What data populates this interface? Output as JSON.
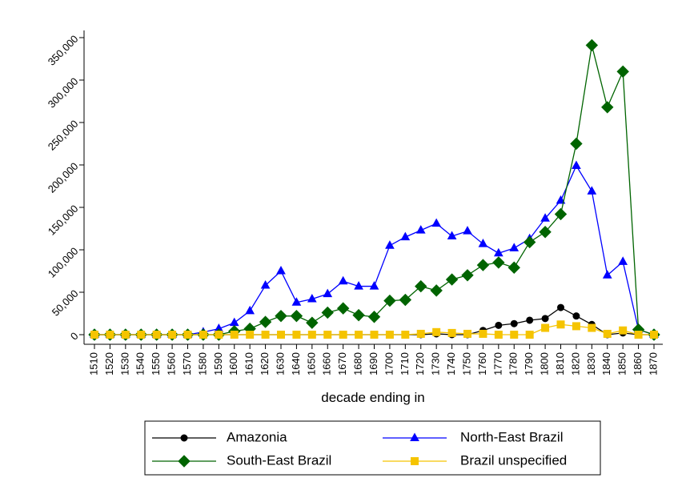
{
  "chart_data": {
    "type": "line",
    "x_label": "decade ending in",
    "categories": [
      "1510",
      "1520",
      "1530",
      "1540",
      "1550",
      "1560",
      "1570",
      "1580",
      "1590",
      "1600",
      "1610",
      "1620",
      "1630",
      "1640",
      "1650",
      "1660",
      "1670",
      "1680",
      "1690",
      "1700",
      "1710",
      "1720",
      "1730",
      "1740",
      "1750",
      "1760",
      "1770",
      "1780",
      "1790",
      "1800",
      "1810",
      "1820",
      "1830",
      "1840",
      "1850",
      "1860",
      "1870"
    ],
    "series": [
      {
        "name": "Amazonia",
        "color": "#000000",
        "marker": "circle",
        "values": [
          0,
          0,
          0,
          0,
          0,
          0,
          0,
          0,
          0,
          0,
          0,
          0,
          0,
          0,
          0,
          0,
          0,
          0,
          0,
          0,
          0,
          0,
          1000,
          0,
          0,
          5000,
          11000,
          13000,
          17000,
          19000,
          32000,
          22000,
          12000,
          0,
          2000,
          0,
          0
        ]
      },
      {
        "name": "North-East Brazil",
        "color": "#0000ff",
        "marker": "triangle",
        "values": [
          0,
          0,
          0,
          0,
          0,
          0,
          0,
          3000,
          7000,
          14000,
          28000,
          58000,
          75000,
          38000,
          42000,
          48000,
          63000,
          57000,
          57000,
          105000,
          115000,
          123000,
          131000,
          116000,
          122000,
          107000,
          96000,
          102000,
          113000,
          137000,
          158000,
          199000,
          169000,
          70000,
          86000,
          6000,
          0
        ]
      },
      {
        "name": "South-East Brazil",
        "color": "#006400",
        "marker": "diamond",
        "values": [
          0,
          0,
          0,
          0,
          0,
          0,
          0,
          0,
          0,
          4000,
          7000,
          15000,
          22000,
          22000,
          14000,
          26000,
          31000,
          23000,
          21000,
          40000,
          41000,
          57000,
          52000,
          65000,
          70000,
          82000,
          85000,
          79000,
          109000,
          121000,
          142000,
          225000,
          341000,
          268000,
          310000,
          6000,
          0
        ]
      },
      {
        "name": "Brazil unspecified",
        "color": "#f5c400",
        "marker": "square",
        "values": [
          0,
          0,
          0,
          0,
          0,
          0,
          0,
          0,
          0,
          0,
          0,
          0,
          0,
          0,
          0,
          0,
          0,
          0,
          0,
          0,
          0,
          1000,
          3000,
          2000,
          1000,
          1000,
          0,
          0,
          0,
          8000,
          12000,
          10000,
          8000,
          1000,
          5000,
          0,
          0
        ]
      }
    ],
    "ylim": [
      -10000,
      360000
    ],
    "yticks": [
      0,
      {
        "value": 50000,
        "label": "50,000"
      },
      {
        "value": 100000,
        "label": "100,000"
      },
      {
        "value": 150000,
        "label": "150,000"
      },
      {
        "value": 200000,
        "label": "200,000"
      },
      {
        "value": 250000,
        "label": "250,000"
      },
      {
        "value": 300000,
        "label": "300,000"
      },
      {
        "value": 350000,
        "label": "350,000"
      }
    ],
    "grid": false
  }
}
